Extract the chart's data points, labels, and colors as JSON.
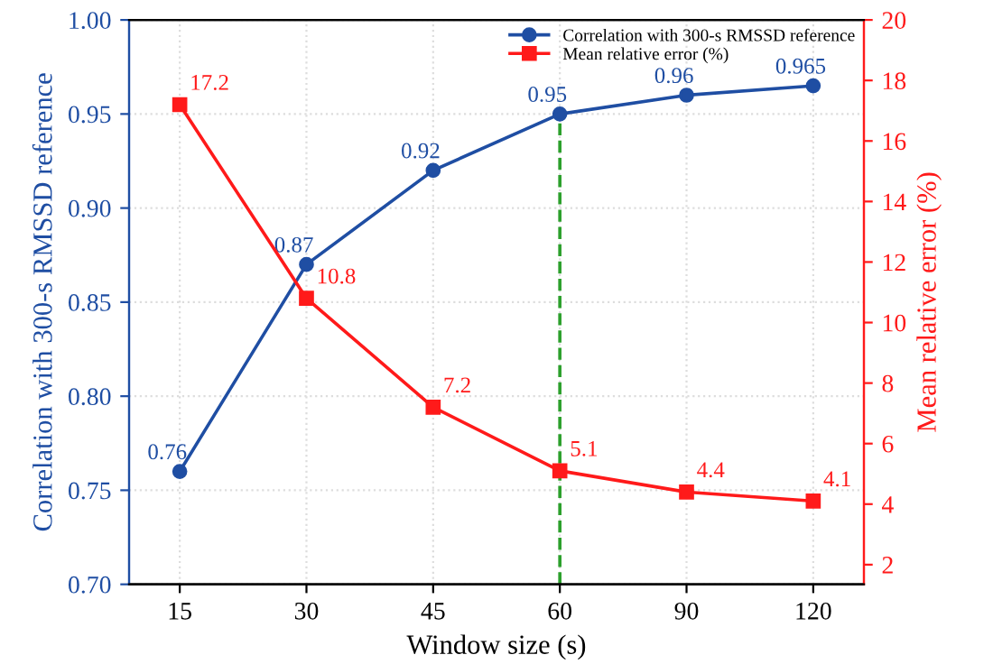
{
  "chart_data": {
    "type": "line",
    "xlabel": "Window size (s)",
    "ylabel": "Correlation with 300-s RMSSD reference",
    "y2label": "Mean relative error (%)",
    "categories": [
      "15",
      "30",
      "45",
      "60",
      "90",
      "120"
    ],
    "series": [
      {
        "name": "Correlation with 300-s RMSSD reference",
        "color": "#1f4ea3",
        "marker": "circle",
        "values": [
          0.76,
          0.87,
          0.92,
          0.95,
          0.96,
          0.965
        ]
      },
      {
        "name": "Mean relative error (%)",
        "color": "#ff1a1a",
        "marker": "square",
        "axis": "y2",
        "values": [
          17.2,
          10.8,
          7.2,
          5.1,
          4.4,
          4.1
        ]
      }
    ],
    "ylim": [
      0.7,
      1.0
    ],
    "yticks": [
      {
        "value": 0.7,
        "label": "0.70"
      },
      {
        "value": 0.75,
        "label": "0.75"
      },
      {
        "value": 0.8,
        "label": "0.80"
      },
      {
        "value": 0.85,
        "label": "0.85"
      },
      {
        "value": 0.9,
        "label": "0.90"
      },
      {
        "value": 0.95,
        "label": "0.95"
      },
      {
        "value": 1.0,
        "label": "1.00"
      }
    ],
    "y2lim": [
      1.35,
      20
    ],
    "y2ticks": [
      2,
      4,
      6,
      8,
      10,
      12,
      14,
      16,
      18,
      20
    ],
    "ref_lines": [
      {
        "axis": "x",
        "value": "60",
        "color": "#2ca02c",
        "line_style": "dashed"
      }
    ],
    "data_labels": true,
    "grid": true,
    "legend": "top right",
    "line_style": "solid"
  }
}
